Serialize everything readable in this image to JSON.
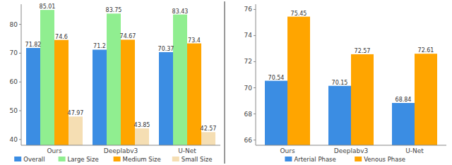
{
  "chart_data": [
    {
      "type": "bar",
      "categories": [
        "Ours",
        "Deeplabv3",
        "U-Net"
      ],
      "series": [
        {
          "name": "Overall",
          "color": "#3b8de3",
          "values": [
            71.82,
            71.2,
            70.37
          ]
        },
        {
          "name": "Large Size",
          "color": "#90ee90",
          "values": [
            85.01,
            83.75,
            83.43
          ]
        },
        {
          "name": "Medium Size",
          "color": "#ffa500",
          "values": [
            74.6,
            74.67,
            73.4
          ]
        },
        {
          "name": "Small Size",
          "color": "#f5deb3",
          "values": [
            47.97,
            43.85,
            42.57
          ]
        }
      ],
      "ylim": [
        38,
        87
      ],
      "yticks": [
        40,
        50,
        60,
        70,
        80
      ],
      "grid": false,
      "data_labels": true,
      "legend": "bottom"
    },
    {
      "type": "bar",
      "categories": [
        "Ours",
        "Deeplabv3",
        "U-Net"
      ],
      "series": [
        {
          "name": "Arterial Phase",
          "color": "#3b8de3",
          "values": [
            70.54,
            70.15,
            68.84
          ]
        },
        {
          "name": "Venous Phase",
          "color": "#ffa500",
          "values": [
            75.45,
            72.57,
            72.61
          ]
        }
      ],
      "ylim": [
        65.6,
        76.4
      ],
      "yticks": [
        66,
        68,
        70,
        72,
        74,
        76
      ],
      "grid": false,
      "data_labels": true,
      "legend": "bottom"
    }
  ]
}
